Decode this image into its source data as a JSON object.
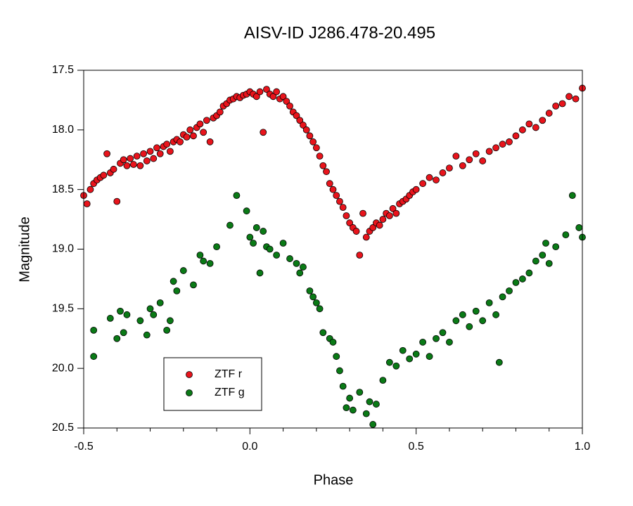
{
  "chart_data": {
    "type": "scatter",
    "title": "AISV-ID J286.478-20.495",
    "x_label": "Phase",
    "y_label": "Magnitude",
    "xlim": [
      -0.5,
      1.0
    ],
    "ylim": [
      17.5,
      20.5
    ],
    "y_inverted": true,
    "xticks": [
      -0.5,
      {
        "value": 0.0,
        "label": "0.0"
      },
      0.5,
      {
        "value": 1.0,
        "label": "1.0"
      }
    ],
    "xminorticks": [
      -0.4,
      -0.3,
      -0.2,
      -0.1,
      0.1,
      0.2,
      0.3,
      0.4,
      0.6,
      0.7,
      0.8,
      0.9
    ],
    "yticks": [
      17.5,
      {
        "value": 18.0,
        "label": "18.0"
      },
      18.5,
      {
        "value": 19.0,
        "label": "19.0"
      },
      19.5,
      {
        "value": 20.0,
        "label": "20.0"
      },
      20.5
    ],
    "legend": "lower-left",
    "series": [
      {
        "name": "ZTF r",
        "color": "#e8141c",
        "x": [
          -0.5,
          -0.49,
          -0.48,
          -0.47,
          -0.46,
          -0.45,
          -0.44,
          -0.43,
          -0.42,
          -0.41,
          -0.4,
          -0.39,
          -0.38,
          -0.37,
          -0.36,
          -0.35,
          -0.34,
          -0.33,
          -0.32,
          -0.31,
          -0.3,
          -0.29,
          -0.28,
          -0.27,
          -0.26,
          -0.25,
          -0.24,
          -0.23,
          -0.22,
          -0.21,
          -0.2,
          -0.19,
          -0.18,
          -0.17,
          -0.16,
          -0.15,
          -0.14,
          -0.13,
          -0.12,
          -0.11,
          -0.1,
          -0.09,
          -0.08,
          -0.07,
          -0.06,
          -0.05,
          -0.04,
          -0.03,
          -0.02,
          -0.01,
          0,
          0.01,
          0.02,
          0.03,
          0.04,
          0.05,
          0.06,
          0.07,
          0.08,
          0.09,
          0.1,
          0.11,
          0.12,
          0.13,
          0.14,
          0.15,
          0.16,
          0.17,
          0.18,
          0.19,
          0.2,
          0.21,
          0.22,
          0.23,
          0.24,
          0.25,
          0.26,
          0.27,
          0.28,
          0.29,
          0.3,
          0.31,
          0.32,
          0.33,
          0.34,
          0.35,
          0.36,
          0.37,
          0.38,
          0.39,
          0.4,
          0.41,
          0.42,
          0.43,
          0.44,
          0.45,
          0.46,
          0.47,
          0.48,
          0.49,
          0.5,
          0.52,
          0.54,
          0.56,
          0.58,
          0.6,
          0.62,
          0.64,
          0.66,
          0.68,
          0.7,
          0.72,
          0.74,
          0.76,
          0.78,
          0.8,
          0.82,
          0.84,
          0.86,
          0.88,
          0.9,
          0.92,
          0.94,
          0.96,
          0.98,
          1.0
        ],
        "values": [
          18.55,
          18.62,
          18.5,
          18.45,
          18.42,
          18.4,
          18.38,
          18.2,
          18.36,
          18.33,
          18.6,
          18.28,
          18.25,
          18.3,
          18.24,
          18.29,
          18.22,
          18.3,
          18.2,
          18.26,
          18.18,
          18.24,
          18.15,
          18.2,
          18.14,
          18.12,
          18.18,
          18.1,
          18.08,
          18.1,
          18.04,
          18.06,
          18.0,
          18.05,
          17.98,
          17.95,
          18.02,
          17.92,
          18.1,
          17.9,
          17.88,
          17.85,
          17.8,
          17.78,
          17.75,
          17.74,
          17.72,
          17.73,
          17.71,
          17.7,
          17.68,
          17.7,
          17.72,
          17.68,
          18.02,
          17.66,
          17.7,
          17.72,
          17.68,
          17.74,
          17.72,
          17.76,
          17.8,
          17.85,
          17.88,
          17.92,
          17.96,
          18.0,
          18.05,
          18.1,
          18.15,
          18.22,
          18.3,
          18.35,
          18.45,
          18.5,
          18.55,
          18.6,
          18.65,
          18.72,
          18.78,
          18.82,
          18.85,
          19.05,
          18.7,
          18.9,
          18.85,
          18.82,
          18.78,
          18.8,
          18.75,
          18.7,
          18.72,
          18.66,
          18.7,
          18.62,
          18.6,
          18.58,
          18.55,
          18.52,
          18.5,
          18.45,
          18.4,
          18.42,
          18.36,
          18.32,
          18.22,
          18.3,
          18.25,
          18.2,
          18.26,
          18.18,
          18.15,
          18.12,
          18.1,
          18.05,
          18.0,
          17.95,
          17.98,
          17.92,
          17.86,
          17.8,
          17.78,
          17.72,
          17.74,
          17.65
        ]
      },
      {
        "name": "ZTF g",
        "color": "#0a7a16",
        "x": [
          -0.47,
          -0.47,
          -0.42,
          -0.4,
          -0.39,
          -0.38,
          -0.37,
          -0.33,
          -0.31,
          -0.3,
          -0.29,
          -0.27,
          -0.25,
          -0.24,
          -0.23,
          -0.22,
          -0.2,
          -0.17,
          -0.15,
          -0.14,
          -0.12,
          -0.1,
          -0.06,
          -0.04,
          -0.01,
          0,
          0.01,
          0.02,
          0.03,
          0.04,
          0.05,
          0.06,
          0.08,
          0.1,
          0.12,
          0.14,
          0.15,
          0.16,
          0.18,
          0.19,
          0.2,
          0.21,
          0.22,
          0.24,
          0.25,
          0.26,
          0.27,
          0.28,
          0.29,
          0.3,
          0.31,
          0.33,
          0.35,
          0.36,
          0.37,
          0.38,
          0.4,
          0.42,
          0.44,
          0.46,
          0.48,
          0.5,
          0.52,
          0.54,
          0.56,
          0.58,
          0.6,
          0.62,
          0.64,
          0.66,
          0.68,
          0.7,
          0.72,
          0.74,
          0.75,
          0.76,
          0.78,
          0.8,
          0.82,
          0.84,
          0.86,
          0.88,
          0.89,
          0.9,
          0.92,
          0.95,
          0.97,
          0.99,
          1.0
        ],
        "values": [
          19.68,
          19.9,
          19.58,
          19.75,
          19.52,
          19.7,
          19.55,
          19.6,
          19.72,
          19.5,
          19.55,
          19.45,
          19.68,
          19.6,
          19.27,
          19.35,
          19.18,
          19.3,
          19.05,
          19.1,
          19.12,
          18.98,
          18.8,
          18.55,
          18.68,
          18.9,
          18.95,
          18.82,
          19.2,
          18.85,
          18.98,
          19.0,
          19.05,
          18.95,
          19.08,
          19.12,
          19.2,
          19.15,
          19.35,
          19.4,
          19.45,
          19.5,
          19.7,
          19.75,
          19.78,
          19.9,
          20.02,
          20.15,
          20.33,
          20.25,
          20.35,
          20.2,
          20.38,
          20.28,
          20.47,
          20.3,
          20.1,
          19.95,
          19.98,
          19.85,
          19.92,
          19.88,
          19.78,
          19.9,
          19.75,
          19.7,
          19.78,
          19.6,
          19.55,
          19.65,
          19.52,
          19.6,
          19.45,
          19.55,
          19.95,
          19.4,
          19.35,
          19.28,
          19.25,
          19.2,
          19.1,
          19.05,
          18.95,
          19.12,
          18.98,
          18.88,
          18.55,
          18.82,
          18.9
        ]
      }
    ]
  }
}
